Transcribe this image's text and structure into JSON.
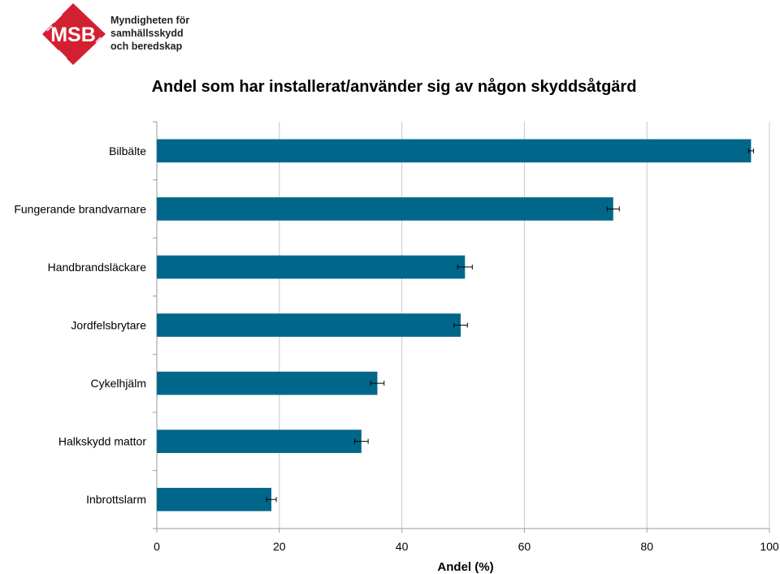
{
  "logo": {
    "mark": "MSB",
    "lines": [
      "Myndigheten för",
      "samhällsskydd",
      "och beredskap"
    ],
    "color": "#d32030"
  },
  "chart_data": {
    "type": "bar",
    "orientation": "horizontal",
    "title": "Andel som har installerat/använder sig av någon skyddsåtgärd",
    "xlabel": "Andel (%)",
    "ylabel": "",
    "categories": [
      "Bilbälte",
      "Fungerande brandvarnare",
      "Handbrandsläckare",
      "Jordfelsbrytare",
      "Cykelhjälm",
      "Halkskydd mattor",
      "Inbrottslarm"
    ],
    "values": [
      97,
      74.5,
      50.3,
      49.6,
      36,
      33.4,
      18.7
    ],
    "error": [
      0.4,
      1.0,
      1.2,
      1.1,
      1.1,
      1.1,
      0.8
    ],
    "xlim": [
      0,
      100
    ],
    "xticks": [
      0,
      20,
      40,
      60,
      80,
      100
    ],
    "grid": "vertical",
    "legend": "none",
    "bar_color": "#00678a"
  }
}
